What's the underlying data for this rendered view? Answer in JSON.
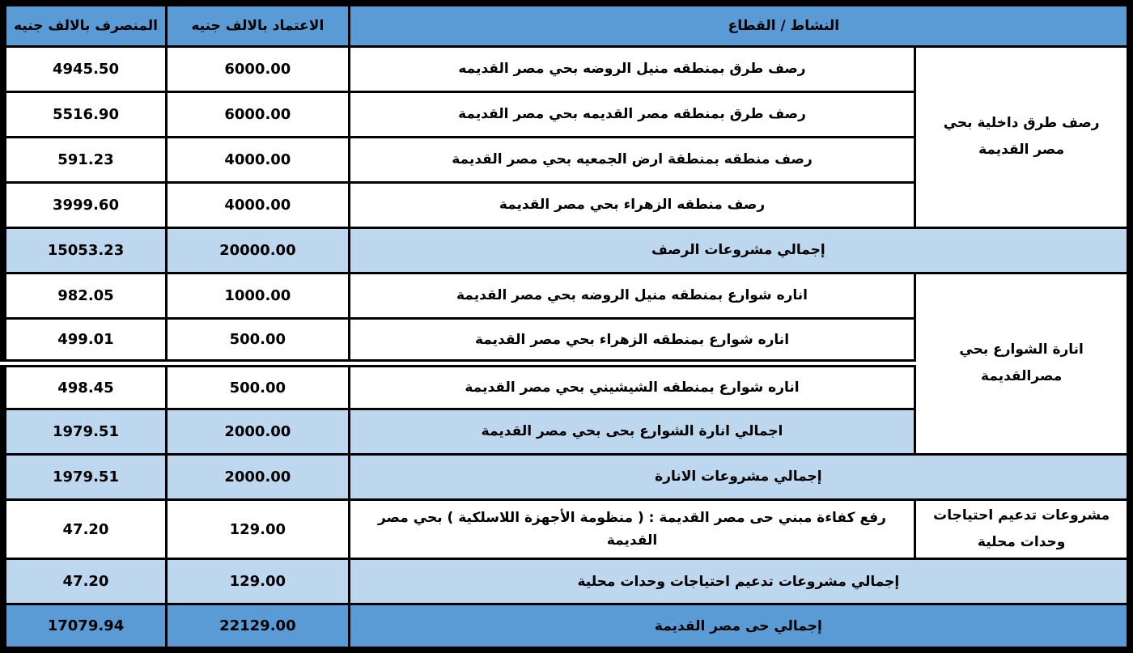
{
  "colors": {
    "header_blue": "#5B9BD5",
    "subtotal_light_blue": "#BDD7EE",
    "grand_total_blue": "#5B9BD5",
    "row_white": "#FFFFFF",
    "border_black": "#000000",
    "text_black": "#000000"
  },
  "header": {
    "spent": "المنصرف بالالف جنيه",
    "credit": "الاعتماد بالالف جنيه",
    "activity": "النشاط / القطاع"
  },
  "groups": [
    {
      "label": "رصف طرق داخلية بحي مصر القديمة"
    },
    {
      "label": "انارة الشوارع بحي مصرالقديمة"
    },
    {
      "label": "مشروعات تدعيم احتياجات وحدات محلية"
    }
  ],
  "rows": [
    {
      "activity": "رصف طرق بمنطقه منيل الروضه بحي مصر القديمه",
      "credit": "6000.00",
      "spent": "4945.50"
    },
    {
      "activity": "رصف طرق بمنطقه مصر القديمه  بحي مصر القديمة",
      "credit": "6000.00",
      "spent": "5516.90"
    },
    {
      "activity": "رصف منطقه بمنطقة ارض الجمعيه بحي مصر القديمة",
      "credit": "4000.00",
      "spent": "591.23"
    },
    {
      "activity": "رصف منطقه الزهراء  بحي مصر القديمة",
      "credit": "4000.00",
      "spent": "3999.60"
    },
    {
      "activity": "إجمالي مشروعات الرصف",
      "credit": "20000.00",
      "spent": "15053.23"
    },
    {
      "activity": "اناره شوارع بمنطقه منيل الروضه  بحي مصر القديمة",
      "credit": "1000.00",
      "spent": "982.05"
    },
    {
      "activity": "اناره شوارع بمنطقه الزهراء  بحي مصر القديمة",
      "credit": "500.00",
      "spent": "499.01"
    },
    {
      "activity": "اناره  شوارع بمنطقه الشيشيني  بحي مصر القديمة",
      "credit": "500.00",
      "spent": "498.45"
    },
    {
      "activity": "اجمالي انارة الشوارع بحى بحي مصر القديمة",
      "credit": "2000.00",
      "spent": "1979.51"
    },
    {
      "activity": "إجمالي مشروعات الانارة",
      "credit": "2000.00",
      "spent": "1979.51"
    },
    {
      "activity": "رفع كفاءة مبني حى مصر القديمة : ( منظومة الأجهزة اللاسلكية ) بحي مصر القديمة",
      "credit": "129.00",
      "spent": "47.20"
    },
    {
      "activity": "إجمالي مشروعات تدعيم احتياجات وحدات محلية",
      "credit": "129.00",
      "spent": "47.20"
    },
    {
      "activity": "إجمالي حى مصر القديمة",
      "credit": "22129.00",
      "spent": "17079.94"
    }
  ]
}
